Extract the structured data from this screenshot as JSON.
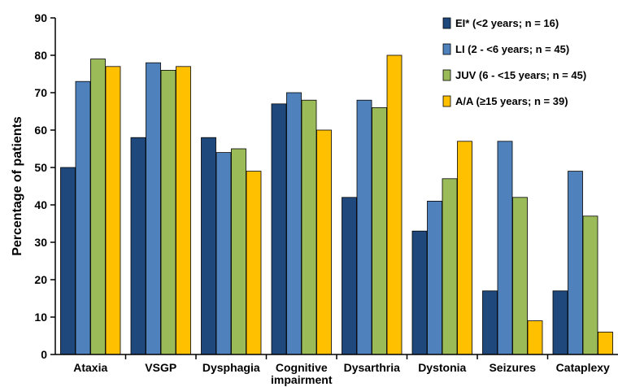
{
  "chart_data": {
    "type": "bar",
    "title": "",
    "xlabel": "",
    "ylabel": "Percentage of patients",
    "ylim": [
      0,
      90
    ],
    "yticks": [
      0,
      10,
      20,
      30,
      40,
      50,
      60,
      70,
      80,
      90
    ],
    "grid": false,
    "legend_position": "top-right",
    "categories": [
      [
        "Ataxia"
      ],
      [
        "VSGP"
      ],
      [
        "Dysphagia"
      ],
      [
        "Cognitive",
        "impairment"
      ],
      [
        "Dysarthria"
      ],
      [
        "Dystonia"
      ],
      [
        "Seizures"
      ],
      [
        "Cataplexy"
      ]
    ],
    "series": [
      {
        "name": "EI* (<2 years; n = 16)",
        "color": "#1f497d",
        "values": [
          50,
          58,
          58,
          67,
          42,
          33,
          17,
          17
        ]
      },
      {
        "name": "LI (2 - <6 years; n = 45)",
        "color": "#4f81bd",
        "values": [
          73,
          78,
          54,
          70,
          68,
          41,
          57,
          49
        ]
      },
      {
        "name": "JUV (6 - <15 years; n = 45)",
        "color": "#9bbb59",
        "values": [
          79,
          76,
          55,
          68,
          66,
          47,
          42,
          37
        ]
      },
      {
        "name": "A/A (≥15 years; n = 39)",
        "color": "#ffc000",
        "values": [
          77,
          77,
          49,
          60,
          80,
          57,
          9,
          6
        ]
      }
    ]
  }
}
